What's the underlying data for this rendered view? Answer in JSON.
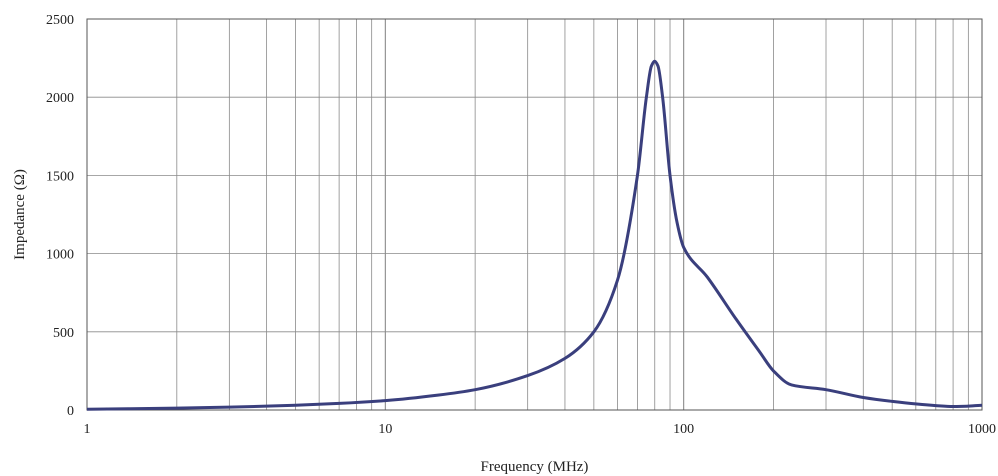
{
  "chart_data": {
    "type": "line",
    "xlabel": "Frequency (MHz)",
    "ylabel": "Impedance (Ω)",
    "xscale": "log",
    "xlim": [
      1,
      1000
    ],
    "ylim": [
      0,
      2500
    ],
    "grid": true,
    "x_ticks": [
      1,
      10,
      100,
      1000
    ],
    "x_tick_labels": [
      "1",
      "10",
      "100",
      "1000"
    ],
    "y_ticks": [
      0,
      500,
      1000,
      1500,
      2000,
      2500
    ],
    "y_tick_labels": [
      "0",
      "500",
      "1000",
      "1500",
      "2000",
      "2500"
    ],
    "series": [
      {
        "color": "#3a3f7d",
        "points": [
          [
            1,
            5
          ],
          [
            2,
            12
          ],
          [
            3,
            18
          ],
          [
            5,
            30
          ],
          [
            7,
            42
          ],
          [
            10,
            60
          ],
          [
            15,
            95
          ],
          [
            20,
            130
          ],
          [
            30,
            220
          ],
          [
            40,
            330
          ],
          [
            50,
            500
          ],
          [
            60,
            830
          ],
          [
            70,
            1500
          ],
          [
            75,
            2000
          ],
          [
            78,
            2200
          ],
          [
            80,
            2230
          ],
          [
            82,
            2200
          ],
          [
            85,
            2000
          ],
          [
            90,
            1500
          ],
          [
            95,
            1200
          ],
          [
            100,
            1040
          ],
          [
            120,
            850
          ],
          [
            150,
            580
          ],
          [
            180,
            370
          ],
          [
            200,
            250
          ],
          [
            230,
            160
          ],
          [
            300,
            130
          ],
          [
            400,
            80
          ],
          [
            500,
            55
          ],
          [
            700,
            28
          ],
          [
            800,
            22
          ],
          [
            1000,
            30
          ]
        ]
      }
    ]
  }
}
